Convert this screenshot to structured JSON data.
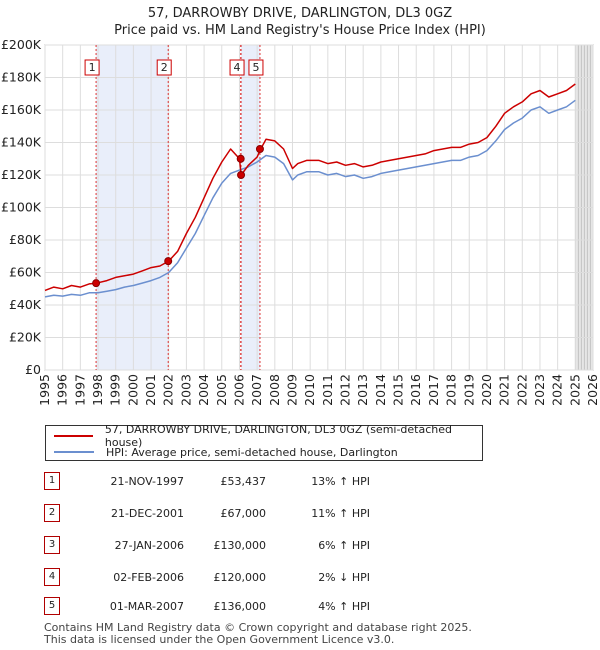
{
  "chart_data": {
    "type": "line",
    "title": "57, DARROWBY DRIVE, DARLINGTON, DL3 0GZ",
    "subtitle": "Price paid vs. HM Land Registry's House Price Index (HPI)",
    "xlabel": "",
    "ylabel": "",
    "xlim": [
      1995,
      2026
    ],
    "ylim": [
      0,
      200000
    ],
    "y_ticks": [
      0,
      20000,
      40000,
      60000,
      80000,
      100000,
      120000,
      140000,
      160000,
      180000,
      200000
    ],
    "y_tick_labels": [
      "£0",
      "£20K",
      "£40K",
      "£60K",
      "£80K",
      "£100K",
      "£120K",
      "£140K",
      "£160K",
      "£180K",
      "£200K"
    ],
    "x_ticks": [
      1995,
      1996,
      1997,
      1998,
      1999,
      2000,
      2001,
      2002,
      2003,
      2004,
      2005,
      2006,
      2007,
      2008,
      2009,
      2010,
      2011,
      2012,
      2013,
      2014,
      2015,
      2016,
      2017,
      2018,
      2019,
      2020,
      2021,
      2022,
      2023,
      2024,
      2025,
      2026
    ],
    "x_tick_labels": [
      "1995",
      "1996",
      "1997",
      "1998",
      "1999",
      "2000",
      "2001",
      "2002",
      "2003",
      "2004",
      "2005",
      "2006",
      "2007",
      "2008",
      "2009",
      "2010",
      "2011",
      "2012",
      "2013",
      "2014",
      "2015",
      "2016",
      "2017",
      "2018",
      "2019",
      "2020",
      "2021",
      "2022",
      "2023",
      "2024",
      "2025",
      "2026"
    ],
    "grid": true,
    "forecast_start": 2025.0,
    "series": [
      {
        "name": "57, DARROWBY DRIVE, DARLINGTON, DL3 0GZ (semi-detached house)",
        "color": "#cc0000",
        "x": [
          1995.0,
          1995.5,
          1996.0,
          1996.5,
          1997.0,
          1997.5,
          1997.9,
          1998.5,
          1999.0,
          1999.5,
          2000.0,
          2000.5,
          2001.0,
          2001.5,
          2002.0,
          2002.5,
          2003.0,
          2003.5,
          2004.0,
          2004.5,
          2005.0,
          2005.5,
          2006.0,
          2006.1,
          2006.5,
          2007.0,
          2007.2,
          2007.5,
          2008.0,
          2008.5,
          2009.0,
          2009.3,
          2009.8,
          2010.5,
          2011.0,
          2011.5,
          2012.0,
          2012.5,
          2013.0,
          2013.5,
          2014.0,
          2014.5,
          2015.0,
          2015.5,
          2016.0,
          2016.5,
          2017.0,
          2017.5,
          2018.0,
          2018.5,
          2019.0,
          2019.5,
          2020.0,
          2020.5,
          2021.0,
          2021.5,
          2022.0,
          2022.5,
          2023.0,
          2023.5,
          2024.0,
          2024.5,
          2025.0
        ],
        "y": [
          49000,
          51000,
          50000,
          52000,
          51000,
          53000,
          53437,
          55000,
          57000,
          58000,
          59000,
          61000,
          63000,
          64000,
          67000,
          73000,
          84000,
          94000,
          106000,
          118000,
          128000,
          136000,
          130000,
          120000,
          126000,
          131000,
          136000,
          142000,
          141000,
          136000,
          124000,
          127000,
          129000,
          129000,
          127000,
          128000,
          126000,
          127000,
          125000,
          126000,
          128000,
          129000,
          130000,
          131000,
          132000,
          133000,
          135000,
          136000,
          137000,
          137000,
          139000,
          140000,
          143000,
          150000,
          158000,
          162000,
          165000,
          170000,
          172000,
          168000,
          170000,
          172000,
          176000
        ]
      },
      {
        "name": "HPI: Average price, semi-detached house, Darlington",
        "color": "#6b8fcf",
        "x": [
          1995.0,
          1995.5,
          1996.0,
          1996.5,
          1997.0,
          1997.5,
          1998.0,
          1998.5,
          1999.0,
          1999.5,
          2000.0,
          2000.5,
          2001.0,
          2001.5,
          2002.0,
          2002.5,
          2003.0,
          2003.5,
          2004.0,
          2004.5,
          2005.0,
          2005.5,
          2006.0,
          2006.5,
          2007.0,
          2007.5,
          2008.0,
          2008.5,
          2009.0,
          2009.3,
          2009.8,
          2010.5,
          2011.0,
          2011.5,
          2012.0,
          2012.5,
          2013.0,
          2013.5,
          2014.0,
          2014.5,
          2015.0,
          2015.5,
          2016.0,
          2016.5,
          2017.0,
          2017.5,
          2018.0,
          2018.5,
          2019.0,
          2019.5,
          2020.0,
          2020.5,
          2021.0,
          2021.5,
          2022.0,
          2022.5,
          2023.0,
          2023.5,
          2024.0,
          2024.5,
          2025.0
        ],
        "y": [
          45000,
          46000,
          45500,
          46500,
          46000,
          47500,
          47500,
          48500,
          49500,
          51000,
          52000,
          53500,
          55000,
          57000,
          60000,
          66000,
          75000,
          84000,
          95000,
          106000,
          115000,
          121000,
          123000,
          125000,
          128000,
          132000,
          131000,
          127000,
          117000,
          120000,
          122000,
          122000,
          120000,
          121000,
          119000,
          120000,
          118000,
          119000,
          121000,
          122000,
          123000,
          124000,
          125000,
          126000,
          127000,
          128000,
          129000,
          129000,
          131000,
          132000,
          135000,
          141000,
          148000,
          152000,
          155000,
          160000,
          162000,
          158000,
          160000,
          162000,
          166000
        ]
      }
    ],
    "sale_markers": [
      {
        "label": "1",
        "x": 1997.89,
        "y": 53437
      },
      {
        "label": "2",
        "x": 2001.97,
        "y": 67000
      },
      {
        "label": "3",
        "x": 2006.07,
        "y": 130000
      },
      {
        "label": "4",
        "x": 2006.09,
        "y": 120000
      },
      {
        "label": "5",
        "x": 2007.16,
        "y": 136000
      }
    ],
    "marker_boxes_shown": [
      "1",
      "2",
      "4",
      "5"
    ]
  },
  "legend": {
    "property_label": "57, DARROWBY DRIVE, DARLINGTON, DL3 0GZ (semi-detached house)",
    "hpi_label": "HPI: Average price, semi-detached house, Darlington"
  },
  "sales": [
    {
      "num": "1",
      "date": "21-NOV-1997",
      "price": "£53,437",
      "hpi": "13% ↑ HPI"
    },
    {
      "num": "2",
      "date": "21-DEC-2001",
      "price": "£67,000",
      "hpi": "11% ↑ HPI"
    },
    {
      "num": "3",
      "date": "27-JAN-2006",
      "price": "£130,000",
      "hpi": "6% ↑ HPI"
    },
    {
      "num": "4",
      "date": "02-FEB-2006",
      "price": "£120,000",
      "hpi": "2% ↓ HPI"
    },
    {
      "num": "5",
      "date": "01-MAR-2007",
      "price": "£136,000",
      "hpi": "4% ↑ HPI"
    }
  ],
  "footer": {
    "line1": "Contains HM Land Registry data © Crown copyright and database right 2025.",
    "line2": "This data is licensed under the Open Government Licence v3.0."
  }
}
